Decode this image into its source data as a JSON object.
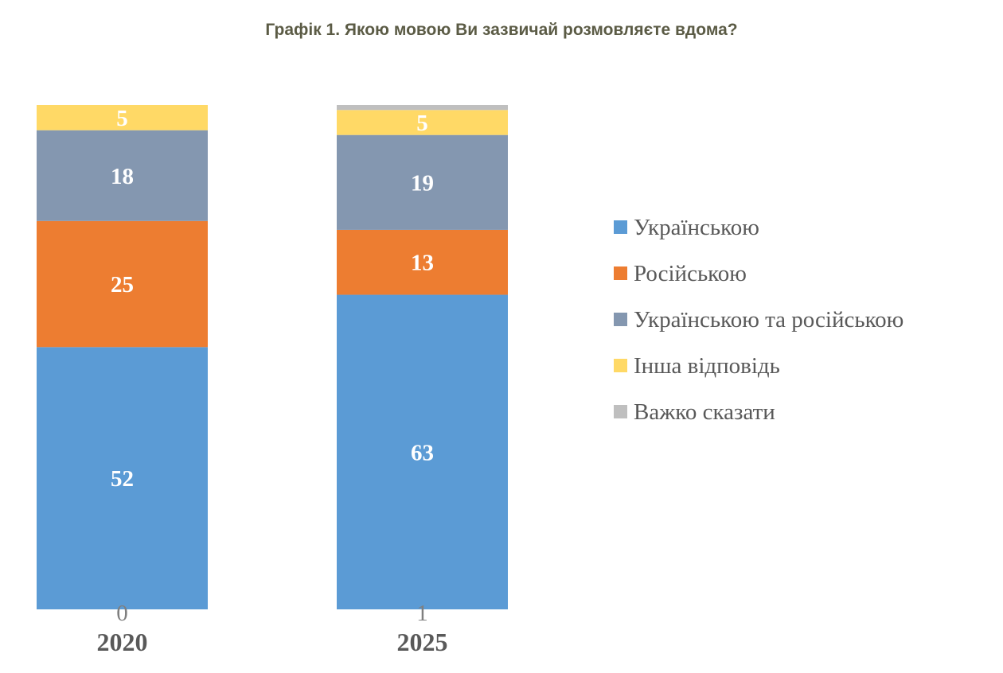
{
  "chart_data": {
    "type": "bar",
    "stacked": true,
    "title": "Графік 1. Якою мовою Ви зазвичай розмовляєте вдома?",
    "categories": [
      "2020",
      "2025"
    ],
    "series": [
      {
        "name": "Українською",
        "color": "#5b9bd5",
        "values": [
          52,
          63
        ]
      },
      {
        "name": "Російською",
        "color": "#ed7d31",
        "values": [
          25,
          13
        ]
      },
      {
        "name": "Українською та російською",
        "color": "#8497b0",
        "values": [
          18,
          19
        ]
      },
      {
        "name": "Інша відповідь",
        "color": "#ffd966",
        "values": [
          5,
          5
        ]
      },
      {
        "name": "Важко сказати",
        "color": "#bfbfbf",
        "values": [
          0,
          1
        ]
      }
    ],
    "xlabel": "",
    "ylabel": "",
    "grid": false,
    "legend_position": "right"
  }
}
